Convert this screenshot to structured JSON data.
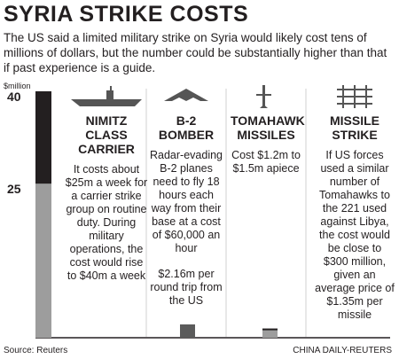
{
  "chart_data": {
    "type": "bar",
    "title": "SYRIA STRIKE COSTS",
    "subtitle": "The US said a limited military strike on Syria would likely cost tens of millions of dollars, but the number could be substantially higher than that if past experience is a guide.",
    "y_label": "$million",
    "ylim": [
      0,
      40
    ],
    "yticks": [
      25,
      40
    ],
    "categories": [
      "NIMITZ CLASS CARRIER",
      "B-2 BOMBER",
      "TOMAHAWK MISSILES",
      "MISSILE STRIKE"
    ],
    "descriptions": [
      [
        "It costs about $25m a week for a carrier strike group on routine duty. During military operations, the cost would rise to $40m a week"
      ],
      [
        "Radar-evading B-2 planes need to fly 18 hours each way from their base at a cost of $60,000 an hour",
        "$2.16m per round trip from the US"
      ],
      [
        "Cost $1.2m to $1.5m apiece"
      ],
      [
        "If US forces used a similar number of Tomahawks to the 221 used against Libya, the cost would be close to $300 million, given an average price of $1.35m per missile"
      ]
    ],
    "values": [
      40,
      2.16,
      1.5,
      null
    ],
    "low_values": [
      25,
      null,
      1.2,
      null
    ],
    "colors": {
      "base": "#9d9d9d",
      "top": "#231f20",
      "single": "#5b5b5b"
    },
    "source": "Source: Reuters",
    "credit": "CHINA DAILY-REUTERS"
  }
}
